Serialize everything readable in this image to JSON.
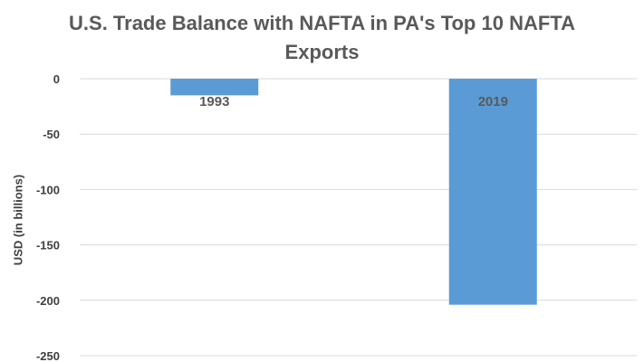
{
  "chart_data": {
    "type": "bar",
    "title": [
      "U.S. Trade Balance with NAFTA in PA's Top 10 NAFTA",
      "Exports"
    ],
    "xlabel": "",
    "ylabel": "USD (in billions)",
    "categories": [
      "1993",
      "2019"
    ],
    "values": [
      -15,
      -204
    ],
    "ylim": [
      -250,
      0
    ],
    "yticks": [
      0,
      -50,
      -100,
      -150,
      -200,
      -250
    ],
    "ytick_labels": [
      "0",
      "-50",
      "-100",
      "-150",
      "-200",
      "-250"
    ],
    "grid": true,
    "legend": "none",
    "bar_color": "#5B9BD5",
    "grid_color": "#D9D9D9",
    "text_color": "#595959"
  }
}
